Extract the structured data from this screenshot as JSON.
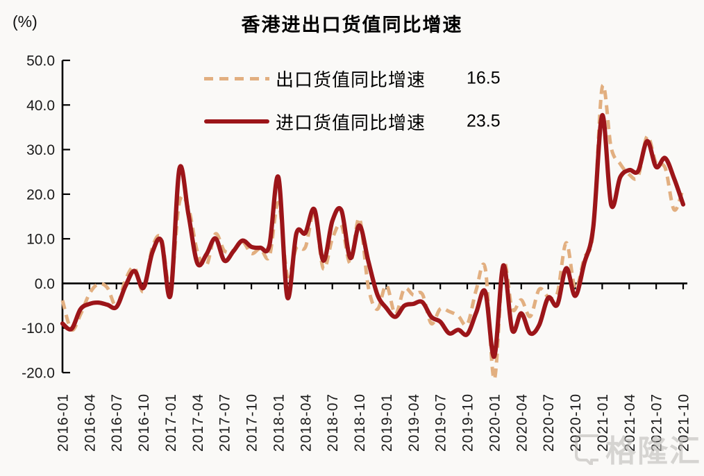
{
  "header": {
    "unit_label": "(%)",
    "title": "香港进出口货值同比增速"
  },
  "legend": {
    "items": [
      {
        "label": "出口货值同比增速",
        "value": "16.5",
        "style": "dashed"
      },
      {
        "label": "进口货值同比增速",
        "value": "23.5",
        "style": "solid"
      }
    ]
  },
  "watermark": {
    "text": "格隆汇"
  },
  "colors": {
    "export": "#E2AF80",
    "import": "#9C1519",
    "axis": "#000000",
    "tick_text": "#1A1A1A",
    "background": "#FAF9F7",
    "watermark": "#A8A5A1"
  },
  "chart_data": {
    "type": "line",
    "title": "香港进出口货值同比增速",
    "ylabel": "(%)",
    "ylim": [
      -20,
      50
    ],
    "yticks": [
      50,
      40,
      30,
      20,
      10,
      0,
      -10,
      -20
    ],
    "ytick_labels": [
      "50.0",
      "40.0",
      "30.0",
      "20.0",
      "10.0",
      "0.0",
      "-10.0",
      "-20.0"
    ],
    "grid": false,
    "legend_position": "top-center",
    "x_tick_every": 3,
    "x_tick_labels": [
      "2016-01",
      "2016-04",
      "2016-07",
      "2016-10",
      "2017-01",
      "2017-04",
      "2017-07",
      "2017-10",
      "2018-01",
      "2018-04",
      "2018-07",
      "2018-10",
      "2019-01",
      "2019-04",
      "2019-07",
      "2019-10",
      "2020-01",
      "2020-04",
      "2020-07",
      "2020-10",
      "2021-01",
      "2021-04",
      "2021-07",
      "2021-10"
    ],
    "x": [
      "2016-01",
      "2016-02",
      "2016-03",
      "2016-04",
      "2016-05",
      "2016-06",
      "2016-07",
      "2016-08",
      "2016-09",
      "2016-10",
      "2016-11",
      "2016-12",
      "2017-01",
      "2017-02",
      "2017-03",
      "2017-04",
      "2017-05",
      "2017-06",
      "2017-07",
      "2017-08",
      "2017-09",
      "2017-10",
      "2017-11",
      "2017-12",
      "2018-01",
      "2018-02",
      "2018-03",
      "2018-04",
      "2018-05",
      "2018-06",
      "2018-07",
      "2018-08",
      "2018-09",
      "2018-10",
      "2018-11",
      "2018-12",
      "2019-01",
      "2019-02",
      "2019-03",
      "2019-04",
      "2019-05",
      "2019-06",
      "2019-07",
      "2019-08",
      "2019-09",
      "2019-10",
      "2019-11",
      "2019-12",
      "2020-01",
      "2020-02",
      "2020-03",
      "2020-04",
      "2020-05",
      "2020-06",
      "2020-07",
      "2020-08",
      "2020-09",
      "2020-10",
      "2020-11",
      "2020-12",
      "2021-01",
      "2021-02",
      "2021-03",
      "2021-04",
      "2021-05",
      "2021-06",
      "2021-07",
      "2021-08",
      "2021-09",
      "2021-10"
    ],
    "series": [
      {
        "name": "出口货值同比增速",
        "latest_shown_value": 16.5,
        "style": "dashed",
        "color_key": "export",
        "values": [
          -3.8,
          -10.4,
          -7.0,
          -2.3,
          -0.1,
          -1.0,
          -5.1,
          0.8,
          3.6,
          -1.8,
          8.1,
          10.1,
          -1.2,
          18.2,
          16.9,
          7.1,
          4.0,
          11.1,
          7.3,
          7.4,
          9.4,
          6.7,
          7.8,
          6.0,
          18.1,
          1.8,
          8.0,
          8.1,
          15.9,
          3.3,
          10.0,
          13.1,
          4.5,
          14.6,
          -0.8,
          -5.8,
          -0.4,
          -6.9,
          -1.2,
          -2.6,
          -2.4,
          -9.0,
          -5.7,
          -6.3,
          -7.3,
          -9.2,
          -1.4,
          3.3,
          -21.5,
          4.5,
          -5.8,
          -3.7,
          -7.4,
          -1.3,
          -3.0,
          -2.3,
          9.1,
          -1.1,
          5.6,
          11.7,
          44.0,
          30.4,
          26.8,
          24.4,
          24.0,
          33.0,
          26.9,
          25.9,
          16.5,
          21.4
        ]
      },
      {
        "name": "进口货值同比增速",
        "latest_shown_value": 23.5,
        "style": "solid",
        "color_key": "import",
        "values": [
          -9.0,
          -10.2,
          -5.8,
          -4.6,
          -4.3,
          -4.8,
          -5.3,
          -0.6,
          2.8,
          -1.0,
          7.0,
          9.5,
          -2.7,
          25.7,
          15.5,
          4.5,
          6.5,
          10.1,
          5.1,
          7.2,
          9.6,
          8.2,
          8.0,
          8.5,
          23.8,
          -3.1,
          11.2,
          11.3,
          16.6,
          5.1,
          14.0,
          16.4,
          5.7,
          13.0,
          5.0,
          -2.5,
          -5.5,
          -7.5,
          -5.0,
          -4.6,
          -4.2,
          -7.5,
          -8.6,
          -11.2,
          -10.4,
          -11.4,
          -6.5,
          -1.9,
          -16.4,
          4.0,
          -10.5,
          -6.7,
          -11.2,
          -9.3,
          -3.2,
          -4.8,
          3.4,
          -2.8,
          4.5,
          12.5,
          37.7,
          17.6,
          23.8,
          25.4,
          25.2,
          31.9,
          26.1,
          28.1,
          23.5,
          17.7
        ]
      }
    ]
  }
}
